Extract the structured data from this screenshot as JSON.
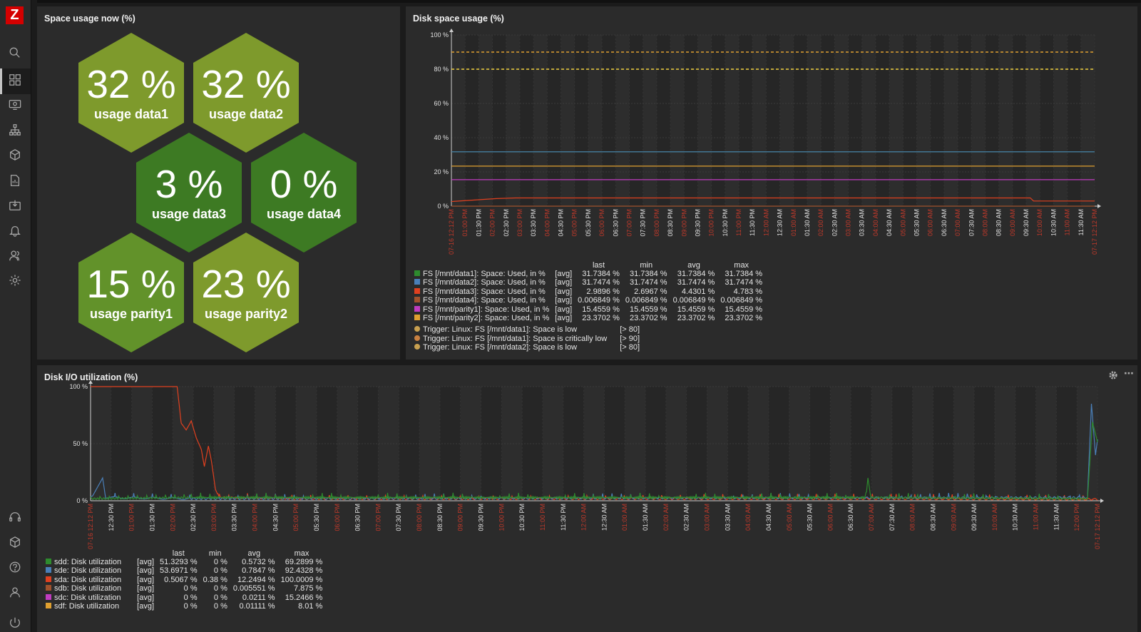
{
  "app": {
    "logo_letter": "Z"
  },
  "sidebar": {
    "items": [
      {
        "name": "search-icon"
      },
      {
        "name": "dashboards-icon"
      },
      {
        "name": "monitoring-icon"
      },
      {
        "name": "network-map-icon"
      },
      {
        "name": "inventory-icon"
      },
      {
        "name": "reports-icon"
      },
      {
        "name": "data-collection-icon"
      },
      {
        "name": "alerts-icon"
      },
      {
        "name": "users-icon"
      },
      {
        "name": "administration-icon"
      },
      {
        "name": "support-icon"
      },
      {
        "name": "integrations-icon"
      },
      {
        "name": "help-icon"
      },
      {
        "name": "user-settings-icon"
      },
      {
        "name": "sign-out-icon"
      }
    ]
  },
  "space_panel": {
    "title": "Space usage now (%)",
    "hexagons": [
      {
        "value": "32 %",
        "label": "usage data1",
        "color": "#7e9a2c"
      },
      {
        "value": "32 %",
        "label": "usage data2",
        "color": "#7e9a2c"
      },
      {
        "value": "3 %",
        "label": "usage data3",
        "color": "#3d7a23"
      },
      {
        "value": "0 %",
        "label": "usage data4",
        "color": "#3d7a23"
      },
      {
        "value": "15 %",
        "label": "usage parity1",
        "color": "#62922a"
      },
      {
        "value": "23 %",
        "label": "usage parity2",
        "color": "#7e9a2c"
      }
    ]
  },
  "disk_panel": {
    "title": "Disk space usage (%)",
    "legend_headers": [
      "last",
      "min",
      "avg",
      "max"
    ],
    "legend": [
      {
        "color": "#2e8b2e",
        "name": "FS [/mnt/data1]: Space: Used, in %",
        "fn": "[avg]",
        "last": "31.7384 %",
        "min": "31.7384 %",
        "avg": "31.7384 %",
        "max": "31.7384 %"
      },
      {
        "color": "#4a7fb8",
        "name": "FS [/mnt/data2]: Space: Used, in %",
        "fn": "[avg]",
        "last": "31.7474 %",
        "min": "31.7474 %",
        "avg": "31.7474 %",
        "max": "31.7474 %"
      },
      {
        "color": "#e0401f",
        "name": "FS [/mnt/data3]: Space: Used, in %",
        "fn": "[avg]",
        "last": "2.9896 %",
        "min": "2.6967 %",
        "avg": "4.4301 %",
        "max": "4.783 %"
      },
      {
        "color": "#a0522d",
        "name": "FS [/mnt/data4]: Space: Used, in %",
        "fn": "[avg]",
        "last": "0.006849 %",
        "min": "0.006849 %",
        "avg": "0.006849 %",
        "max": "0.006849 %"
      },
      {
        "color": "#c03cc0",
        "name": "FS [/mnt/parity1]: Space: Used, in %",
        "fn": "[avg]",
        "last": "15.4559 %",
        "min": "15.4559 %",
        "avg": "15.4559 %",
        "max": "15.4559 %"
      },
      {
        "color": "#e0a030",
        "name": "FS [/mnt/parity2]: Space: Used, in %",
        "fn": "[avg]",
        "last": "23.3702 %",
        "min": "23.3702 %",
        "avg": "23.3702 %",
        "max": "23.3702 %"
      }
    ],
    "triggers": [
      {
        "color": "#c8a050",
        "name": "Trigger: Linux: FS [/mnt/data1]: Space is low",
        "cond": "[> 80]"
      },
      {
        "color": "#c88040",
        "name": "Trigger: Linux: FS [/mnt/data1]: Space is critically low",
        "cond": "[> 90]"
      },
      {
        "color": "#c8a050",
        "name": "Trigger: Linux: FS [/mnt/data2]: Space is low",
        "cond": "[> 80]"
      }
    ]
  },
  "io_panel": {
    "title": "Disk I/O utilization (%)",
    "legend_headers": [
      "last",
      "min",
      "avg",
      "max"
    ],
    "legend": [
      {
        "color": "#2e8b2e",
        "name": "sdd: Disk utilization",
        "fn": "[avg]",
        "last": "51.3293 %",
        "min": "0 %",
        "avg": "0.5732 %",
        "max": "69.2899 %"
      },
      {
        "color": "#4a7fb8",
        "name": "sde: Disk utilization",
        "fn": "[avg]",
        "last": "53.6971 %",
        "min": "0 %",
        "avg": "0.7847 %",
        "max": "92.4328 %"
      },
      {
        "color": "#e0401f",
        "name": "sda: Disk utilization",
        "fn": "[avg]",
        "last": "0.5067 %",
        "min": "0.38 %",
        "avg": "12.2494 %",
        "max": "100.0009 %"
      },
      {
        "color": "#a0522d",
        "name": "sdb: Disk utilization",
        "fn": "[avg]",
        "last": "0 %",
        "min": "0 %",
        "avg": "0.005551 %",
        "max": "7.875 %"
      },
      {
        "color": "#c03cc0",
        "name": "sdc: Disk utilization",
        "fn": "[avg]",
        "last": "0 %",
        "min": "0 %",
        "avg": "0.0211 %",
        "max": "15.2466 %"
      },
      {
        "color": "#e0a030",
        "name": "sdf: Disk utilization",
        "fn": "[avg]",
        "last": "0 %",
        "min": "0 %",
        "avg": "0.01111 %",
        "max": "8.01 %"
      }
    ]
  },
  "chart_data": [
    {
      "type": "line",
      "title": "Disk space usage (%)",
      "yticks": [
        "100 %",
        "80 %",
        "60 %",
        "40 %",
        "20 %",
        "0 %"
      ],
      "ylim": [
        0,
        100
      ],
      "xticks": [
        "07-16 12:12 PM",
        "01:00 PM",
        "01:30 PM",
        "02:00 PM",
        "02:30 PM",
        "03:00 PM",
        "03:30 PM",
        "04:00 PM",
        "04:30 PM",
        "05:00 PM",
        "05:30 PM",
        "06:00 PM",
        "06:30 PM",
        "07:00 PM",
        "07:30 PM",
        "08:00 PM",
        "08:30 PM",
        "09:00 PM",
        "09:30 PM",
        "10:00 PM",
        "10:30 PM",
        "11:00 PM",
        "11:30 PM",
        "12:00 AM",
        "12:30 AM",
        "01:00 AM",
        "01:30 AM",
        "02:00 AM",
        "02:30 AM",
        "03:00 AM",
        "03:30 AM",
        "04:00 AM",
        "04:30 AM",
        "05:00 AM",
        "05:30 AM",
        "06:00 AM",
        "06:30 AM",
        "07:00 AM",
        "07:30 AM",
        "08:00 AM",
        "08:30 AM",
        "09:00 AM",
        "09:30 AM",
        "10:00 AM",
        "10:30 AM",
        "11:00 AM",
        "11:30 AM",
        "07-17 12:12 PM"
      ],
      "xtick_colors": [
        "#c0392b",
        "#c0392b",
        "#e0e0e0",
        "#c0392b",
        "#e0e0e0",
        "#c0392b",
        "#e0e0e0",
        "#c0392b",
        "#e0e0e0",
        "#c0392b",
        "#e0e0e0",
        "#c0392b",
        "#e0e0e0",
        "#c0392b",
        "#e0e0e0",
        "#c0392b",
        "#e0e0e0",
        "#c0392b",
        "#e0e0e0",
        "#c0392b",
        "#e0e0e0",
        "#c0392b",
        "#e0e0e0",
        "#c0392b",
        "#e0e0e0",
        "#c0392b",
        "#e0e0e0",
        "#c0392b",
        "#e0e0e0",
        "#c0392b",
        "#e0e0e0",
        "#c0392b",
        "#e0e0e0",
        "#c0392b",
        "#e0e0e0",
        "#c0392b",
        "#e0e0e0",
        "#c0392b",
        "#e0e0e0",
        "#c0392b",
        "#e0e0e0",
        "#c0392b",
        "#e0e0e0",
        "#c0392b",
        "#e0e0e0",
        "#c0392b",
        "#e0e0e0",
        "#c0392b"
      ],
      "thresholds": [
        {
          "value": 90,
          "color": "#e0a030"
        },
        {
          "value": 80,
          "color": "#f0d040"
        }
      ],
      "series": [
        {
          "name": "FS [/mnt/data1]: Space: Used, in %",
          "color": "#2e8b2e",
          "values": [
            [
              0,
              31.74
            ],
            [
              1,
              31.74
            ]
          ]
        },
        {
          "name": "FS [/mnt/data2]: Space: Used, in %",
          "color": "#4a7fb8",
          "values": [
            [
              0,
              31.75
            ],
            [
              1,
              31.75
            ]
          ]
        },
        {
          "name": "FS [/mnt/data3]: Space: Used, in %",
          "color": "#e0401f",
          "values": [
            [
              0,
              2.7
            ],
            [
              0.07,
              4.4
            ],
            [
              0.1,
              4.78
            ],
            [
              0.9,
              4.78
            ],
            [
              0.905,
              2.99
            ],
            [
              1,
              2.99
            ]
          ]
        },
        {
          "name": "FS [/mnt/data4]: Space: Used, in %",
          "color": "#a0522d",
          "values": [
            [
              0,
              0.007
            ],
            [
              1,
              0.007
            ]
          ]
        },
        {
          "name": "FS [/mnt/parity1]: Space: Used, in %",
          "color": "#c03cc0",
          "values": [
            [
              0,
              15.46
            ],
            [
              1,
              15.46
            ]
          ]
        },
        {
          "name": "FS [/mnt/parity2]: Space: Used, in %",
          "color": "#e0a030",
          "values": [
            [
              0,
              23.37
            ],
            [
              1,
              23.37
            ]
          ]
        }
      ]
    },
    {
      "type": "line",
      "title": "Disk I/O utilization (%)",
      "yticks": [
        "100 %",
        "50 %",
        "0 %"
      ],
      "ylim": [
        0,
        100
      ],
      "xticks": [
        "07-16 12:12 PM",
        "12:30 PM",
        "01:00 PM",
        "01:30 PM",
        "02:00 PM",
        "02:30 PM",
        "03:00 PM",
        "03:30 PM",
        "04:00 PM",
        "04:30 PM",
        "05:00 PM",
        "05:30 PM",
        "06:00 PM",
        "06:30 PM",
        "07:00 PM",
        "07:30 PM",
        "08:00 PM",
        "08:30 PM",
        "09:00 PM",
        "09:30 PM",
        "10:00 PM",
        "10:30 PM",
        "11:00 PM",
        "11:30 PM",
        "12:00 AM",
        "12:30 AM",
        "01:00 AM",
        "01:30 AM",
        "02:00 AM",
        "02:30 AM",
        "03:00 AM",
        "03:30 AM",
        "04:00 AM",
        "04:30 AM",
        "05:00 AM",
        "05:30 AM",
        "06:00 AM",
        "06:30 AM",
        "07:00 AM",
        "07:30 AM",
        "08:00 AM",
        "08:30 AM",
        "09:00 AM",
        "09:30 AM",
        "10:00 AM",
        "10:30 AM",
        "11:00 AM",
        "11:30 AM",
        "12:00 PM",
        "07-17 12:12 PM"
      ],
      "xtick_colors": [
        "#c0392b",
        "#e0e0e0",
        "#c0392b",
        "#e0e0e0",
        "#c0392b",
        "#e0e0e0",
        "#c0392b",
        "#e0e0e0",
        "#c0392b",
        "#e0e0e0",
        "#c0392b",
        "#e0e0e0",
        "#c0392b",
        "#e0e0e0",
        "#c0392b",
        "#e0e0e0",
        "#c0392b",
        "#e0e0e0",
        "#c0392b",
        "#e0e0e0",
        "#c0392b",
        "#e0e0e0",
        "#c0392b",
        "#e0e0e0",
        "#c0392b",
        "#e0e0e0",
        "#c0392b",
        "#e0e0e0",
        "#c0392b",
        "#e0e0e0",
        "#c0392b",
        "#e0e0e0",
        "#c0392b",
        "#e0e0e0",
        "#c0392b",
        "#e0e0e0",
        "#c0392b",
        "#e0e0e0",
        "#c0392b",
        "#e0e0e0",
        "#c0392b",
        "#e0e0e0",
        "#c0392b",
        "#e0e0e0",
        "#c0392b",
        "#e0e0e0",
        "#c0392b",
        "#e0e0e0",
        "#c0392b",
        "#c0392b"
      ],
      "series": [
        {
          "name": "sda: Disk utilization",
          "color": "#e0401f",
          "values": [
            [
              0,
              100
            ],
            [
              0.086,
              100
            ],
            [
              0.09,
              68
            ],
            [
              0.095,
              62
            ],
            [
              0.1,
              70
            ],
            [
              0.105,
              55
            ],
            [
              0.11,
              45
            ],
            [
              0.113,
              30
            ],
            [
              0.117,
              48
            ],
            [
              0.12,
              35
            ],
            [
              0.124,
              10
            ],
            [
              0.128,
              2
            ],
            [
              0.2,
              1
            ],
            [
              0.4,
              1
            ],
            [
              0.6,
              1
            ],
            [
              0.8,
              1
            ],
            [
              1,
              0.5
            ]
          ]
        },
        {
          "name": "sde: Disk utilization",
          "color": "#4a7fb8",
          "values": [
            [
              0,
              1
            ],
            [
              0.012,
              20
            ],
            [
              0.015,
              2
            ],
            [
              0.1,
              1
            ],
            [
              0.99,
              2
            ],
            [
              0.994,
              85
            ],
            [
              0.998,
              40
            ],
            [
              1,
              53.7
            ]
          ]
        },
        {
          "name": "sdd: Disk utilization",
          "color": "#2e8b2e",
          "values": [
            [
              0,
              1
            ],
            [
              0.1,
              2
            ],
            [
              0.77,
              2
            ],
            [
              0.772,
              20
            ],
            [
              0.775,
              2
            ],
            [
              0.99,
              1
            ],
            [
              0.995,
              69
            ],
            [
              1,
              51.3
            ]
          ]
        }
      ]
    }
  ]
}
